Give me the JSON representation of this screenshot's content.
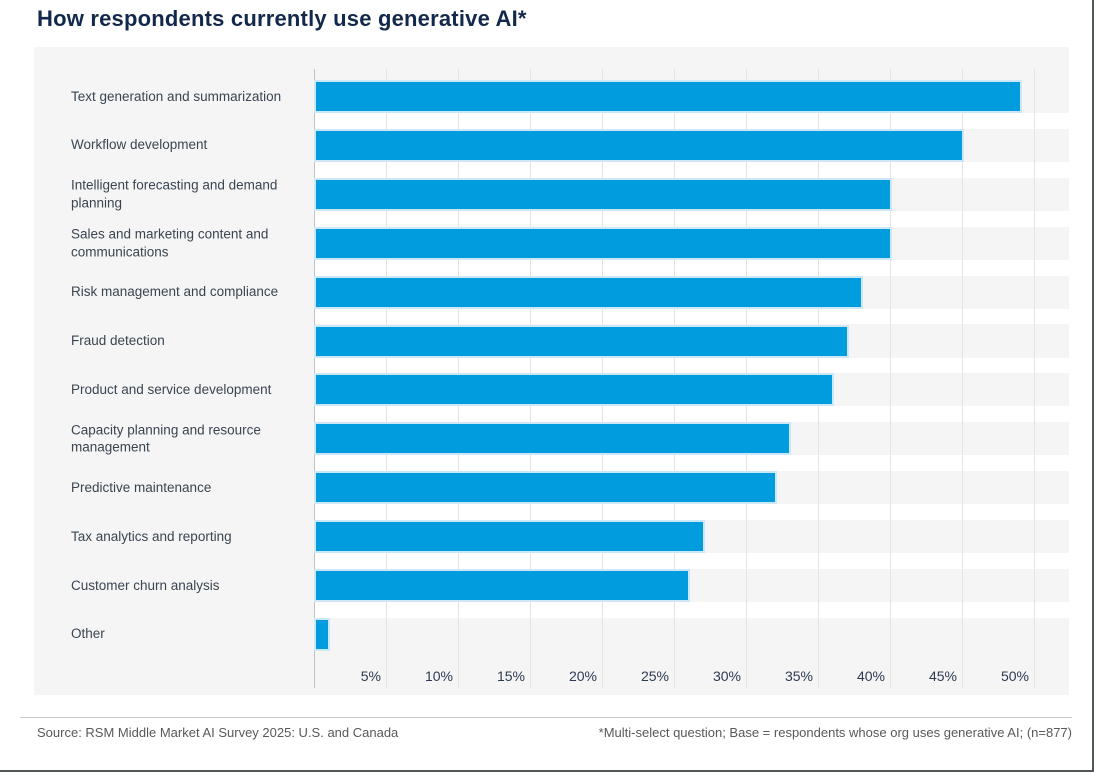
{
  "title": "How respondents currently use generative AI*",
  "footer": {
    "source": "Source: RSM Middle Market AI Survey 2025: U.S. and Canada",
    "note": "*Multi-select question; Base = respondents whose org uses generative AI; (n=877)"
  },
  "colors": {
    "bar": "#009cde",
    "bar_outline": "#cbe7f8",
    "title_navy": "#13294b",
    "panel_bg": "#f5f5f5",
    "gridline": "#e4e4e4",
    "label_text": "#3a4551",
    "footer_text": "#595959"
  },
  "chart_data": {
    "type": "bar",
    "orientation": "horizontal",
    "title": "How respondents currently use generative AI*",
    "categories": [
      "Text generation and summarization",
      "Workflow development",
      "Intelligent forecasting and demand planning",
      "Sales and marketing content and communications",
      "Risk management and compliance",
      "Fraud detection",
      "Product and service development",
      "Capacity planning and resource management",
      "Predictive maintenance",
      "Tax analytics and reporting",
      "Customer churn analysis",
      "Other"
    ],
    "values": [
      49,
      45,
      40,
      40,
      38,
      37,
      36,
      33,
      32,
      27,
      26,
      1
    ],
    "unit": "%",
    "xlabel": "",
    "ylabel": "",
    "xlim": [
      0,
      50
    ],
    "xticks": [
      5,
      10,
      15,
      20,
      25,
      30,
      35,
      40,
      45,
      50
    ],
    "tick_format": "{v}%",
    "grid": "vertical",
    "legend": "none"
  }
}
